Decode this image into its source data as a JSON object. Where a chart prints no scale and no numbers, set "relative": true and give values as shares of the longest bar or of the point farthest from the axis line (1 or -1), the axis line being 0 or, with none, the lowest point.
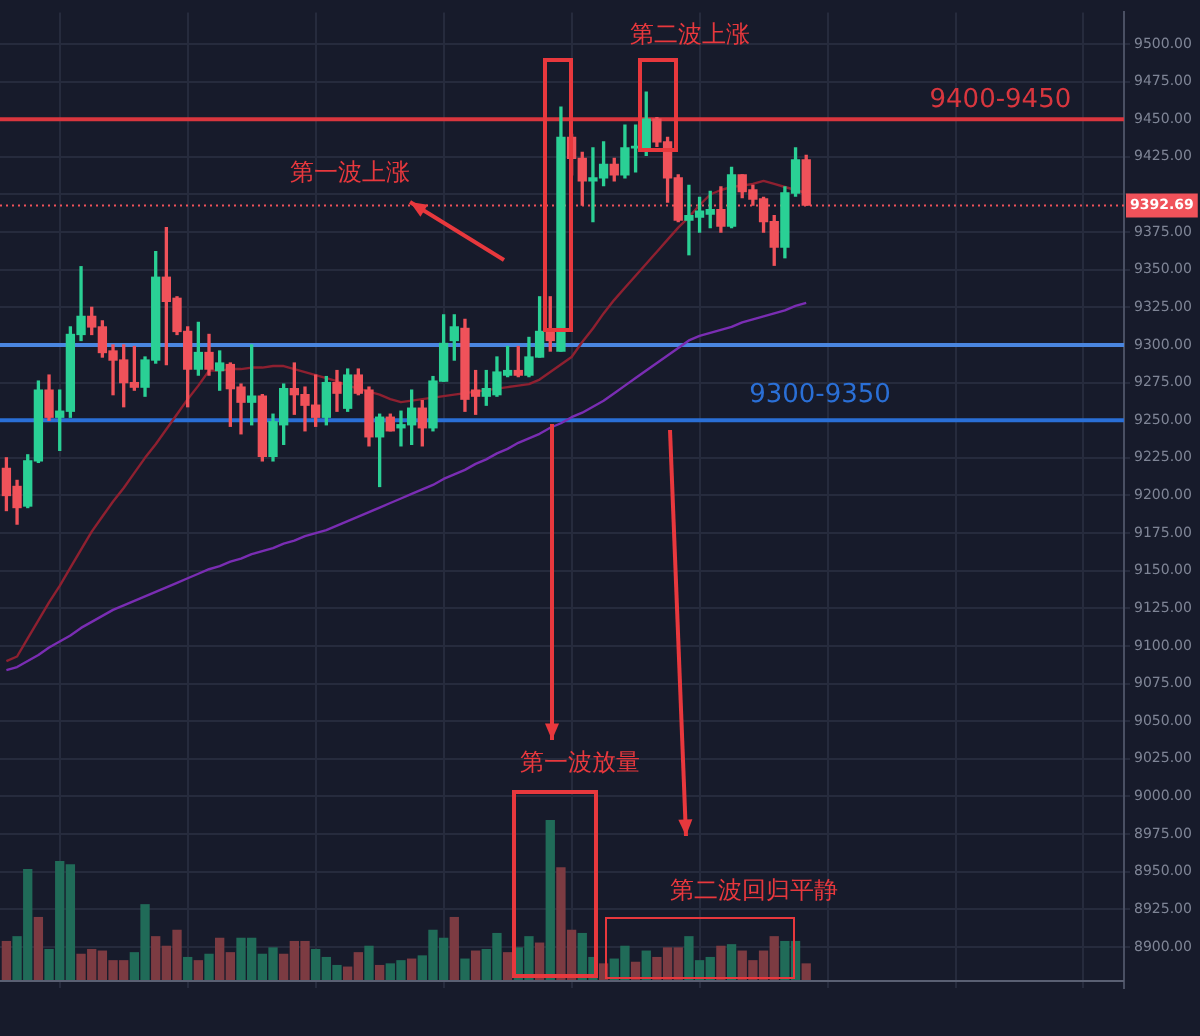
{
  "chart_data": [
    {
      "type": "candlestick",
      "categories": [
        null,
        null,
        null,
        null,
        null,
        null,
        null,
        null,
        null,
        null,
        null,
        null,
        null,
        null,
        null,
        null,
        null,
        null,
        null,
        null,
        null,
        null,
        null,
        null,
        null,
        null,
        null,
        null,
        null,
        null,
        null,
        null,
        null,
        null,
        null,
        null,
        null,
        null,
        null,
        null,
        null,
        null,
        null,
        null,
        null,
        null,
        null,
        null,
        null,
        null,
        null,
        null,
        null,
        null,
        null,
        null,
        null,
        null,
        null,
        null,
        null,
        null,
        null,
        null,
        null,
        null,
        null,
        null,
        null,
        null,
        null,
        null,
        null,
        null,
        null,
        null
      ],
      "ohlc": [
        [
          9218,
          9225,
          9190,
          9200
        ],
        [
          9206,
          9210,
          9181,
          9192
        ],
        [
          9193,
          9227,
          9192,
          9223
        ],
        [
          9223,
          9276,
          9222,
          9270
        ],
        [
          9270,
          9280,
          9250,
          9252
        ],
        [
          9252,
          9270,
          9230,
          9256
        ],
        [
          9256,
          9312,
          9252,
          9307
        ],
        [
          9307,
          9352,
          9303,
          9319
        ],
        [
          9319,
          9325,
          9307,
          9312
        ],
        [
          9312,
          9316,
          9292,
          9295
        ],
        [
          9296,
          9300,
          9267,
          9290
        ],
        [
          9290,
          9300,
          9259,
          9275
        ],
        [
          9275,
          9299,
          9270,
          9272
        ],
        [
          9272,
          9292,
          9266,
          9290
        ],
        [
          9290,
          9362,
          9288,
          9345
        ],
        [
          9345,
          9378,
          9287,
          9329
        ],
        [
          9331,
          9332,
          9307,
          9309
        ],
        [
          9309,
          9312,
          9259,
          9284
        ],
        [
          9284,
          9315,
          9280,
          9295
        ],
        [
          9295,
          9307,
          9280,
          9284
        ],
        [
          9283,
          9296,
          9270,
          9288
        ],
        [
          9287,
          9288,
          9246,
          9271
        ],
        [
          9272,
          9274,
          9241,
          9262
        ],
        [
          9262,
          9300,
          9247,
          9266
        ],
        [
          9266,
          9267,
          9223,
          9226
        ],
        [
          9226,
          9254,
          9223,
          9249
        ],
        [
          9247,
          9274,
          9234,
          9271
        ],
        [
          9271,
          9288,
          9254,
          9267
        ],
        [
          9267,
          9272,
          9243,
          9260
        ],
        [
          9260,
          9280,
          9246,
          9252
        ],
        [
          9252,
          9279,
          9247,
          9275
        ],
        [
          9275,
          9283,
          9256,
          9268
        ],
        [
          9258,
          9284,
          9256,
          9280
        ],
        [
          9280,
          9284,
          9267,
          9268
        ],
        [
          9270,
          9272,
          9233,
          9239
        ],
        [
          9239,
          9254,
          9206,
          9252
        ],
        [
          9252,
          9254,
          9243,
          9243
        ],
        [
          9245,
          9256,
          9233,
          9247
        ],
        [
          9247,
          9270,
          9234,
          9258
        ],
        [
          9258,
          9263,
          9233,
          9245
        ],
        [
          9245,
          9279,
          9243,
          9276
        ],
        [
          9276,
          9320,
          9276,
          9301
        ],
        [
          9303,
          9320,
          9290,
          9312
        ],
        [
          9311,
          9317,
          9256,
          9264
        ],
        [
          9270,
          9283,
          9254,
          9266
        ],
        [
          9266,
          9283,
          9260,
          9271
        ],
        [
          9267,
          9292,
          9266,
          9282
        ],
        [
          9280,
          9299,
          9279,
          9283
        ],
        [
          9283,
          9299,
          9279,
          9280
        ],
        [
          9280,
          9305,
          9279,
          9292
        ],
        [
          9292,
          9332,
          9292,
          9309
        ],
        [
          9309,
          9332,
          9296,
          9303
        ],
        [
          9296,
          9458,
          9296,
          9438
        ],
        [
          9438,
          9440,
          9413,
          9424
        ],
        [
          9424,
          9428,
          9393,
          9409
        ],
        [
          9409,
          9431,
          9382,
          9411
        ],
        [
          9411,
          9435,
          9406,
          9420
        ],
        [
          9420,
          9424,
          9409,
          9413
        ],
        [
          9413,
          9446,
          9411,
          9431
        ],
        [
          9431,
          9446,
          9415,
          9432
        ],
        [
          9431,
          9468,
          9426,
          9450
        ],
        [
          9450,
          9451,
          9432,
          9435
        ],
        [
          9435,
          9438,
          9395,
          9411
        ],
        [
          9411,
          9413,
          9382,
          9383
        ],
        [
          9383,
          9406,
          9360,
          9386
        ],
        [
          9385,
          9398,
          9375,
          9389
        ],
        [
          9387,
          9402,
          9378,
          9390
        ],
        [
          9390,
          9405,
          9375,
          9379
        ],
        [
          9379,
          9418,
          9378,
          9413
        ],
        [
          9413,
          9413,
          9398,
          9402
        ],
        [
          9403,
          9406,
          9393,
          9397
        ],
        [
          9397,
          9398,
          9375,
          9382
        ],
        [
          9382,
          9386,
          9353,
          9365
        ],
        [
          9365,
          9405,
          9358,
          9401
        ],
        [
          9401,
          9431,
          9399,
          9423
        ],
        [
          9423,
          9426,
          9393,
          9393
        ]
      ],
      "colors": [
        "#f0525a",
        "#f0525a",
        "#2ad095",
        "#2ad095",
        "#f0525a",
        "#2ad095",
        "#2ad095",
        "#2ad095",
        "#f0525a",
        "#f0525a",
        "#f0525a",
        "#f0525a",
        "#f0525a",
        "#2ad095",
        "#2ad095",
        "#f0525a",
        "#f0525a",
        "#f0525a",
        "#2ad095",
        "#f0525a",
        "#2ad095",
        "#f0525a",
        "#f0525a",
        "#2ad095",
        "#f0525a",
        "#2ad095",
        "#2ad095",
        "#f0525a",
        "#f0525a",
        "#f0525a",
        "#2ad095",
        "#f0525a",
        "#2ad095",
        "#f0525a",
        "#f0525a",
        "#2ad095",
        "#f0525a",
        "#2ad095",
        "#2ad095",
        "#f0525a",
        "#2ad095",
        "#2ad095",
        "#2ad095",
        "#f0525a",
        "#f0525a",
        "#2ad095",
        "#2ad095",
        "#2ad095",
        "#f0525a",
        "#2ad095",
        "#2ad095",
        "#f0525a",
        "#2ad095",
        "#f0525a",
        "#f0525a",
        "#2ad095",
        "#2ad095",
        "#f0525a",
        "#2ad095",
        "#2ad095",
        "#2ad095",
        "#f0525a",
        "#f0525a",
        "#f0525a",
        "#2ad095",
        "#2ad095",
        "#2ad095",
        "#f0525a",
        "#2ad095",
        "#f0525a",
        "#f0525a",
        "#f0525a",
        "#f0525a",
        "#2ad095",
        "#2ad095",
        "#f0525a"
      ],
      "series": [
        {
          "type": "line",
          "color": "#8e2030",
          "values": [
            9090,
            9093,
            9105,
            9117,
            9129,
            9140,
            9152,
            9164,
            9176,
            9186,
            9196,
            9205,
            9215,
            9225,
            9234,
            9244,
            9254,
            9264,
            9273,
            9283,
            9283,
            9284,
            9284,
            9285,
            9285,
            9286,
            9286,
            9284,
            9282,
            9280,
            9278,
            9276,
            9273,
            9271,
            9269,
            9267,
            9264,
            9262,
            9263,
            9264,
            9265,
            9266,
            9267,
            9268,
            9269,
            9270,
            9271,
            9272,
            9273,
            9274,
            9277,
            9282,
            9287,
            9292,
            9302,
            9311,
            9321,
            9330,
            9338,
            9346,
            9354,
            9362,
            9370,
            9378,
            9385,
            9393,
            9400,
            9403,
            9405,
            9406,
            9407,
            9409,
            9407,
            9405,
            9403,
            9401
          ]
        },
        {
          "type": "line",
          "color": "#7a2db3",
          "values": [
            9084,
            9086,
            9090,
            9094,
            9099,
            9103,
            9107,
            9112,
            9116,
            9120,
            9124,
            9127,
            9130,
            9133,
            9136,
            9139,
            9142,
            9145,
            9148,
            9151,
            9153,
            9156,
            9158,
            9161,
            9163,
            9165,
            9168,
            9170,
            9173,
            9175,
            9177,
            9180,
            9183,
            9186,
            9189,
            9192,
            9195,
            9198,
            9201,
            9204,
            9207,
            9211,
            9214,
            9217,
            9221,
            9224,
            9228,
            9231,
            9235,
            9238,
            9241,
            9245,
            9248,
            9252,
            9255,
            9259,
            9263,
            9268,
            9273,
            9278,
            9283,
            9288,
            9293,
            9298,
            9303,
            9306,
            9308,
            9310,
            9312,
            9315,
            9317,
            9319,
            9321,
            9323,
            9326,
            9328
          ]
        }
      ],
      "ylim": [
        8873,
        9521
      ],
      "yticks": [
        {
          "value": 8900,
          "label": "8900.00"
        },
        {
          "value": 8925,
          "label": "8925.00"
        },
        {
          "value": 8950,
          "label": "8950.00"
        },
        {
          "value": 8975,
          "label": "8975.00"
        },
        {
          "value": 9000,
          "label": "9000.00"
        },
        {
          "value": 9025,
          "label": "9025.00"
        },
        {
          "value": 9050,
          "label": "9050.00"
        },
        {
          "value": 9075,
          "label": "9075.00"
        },
        {
          "value": 9100,
          "label": "9100.00"
        },
        {
          "value": 9125,
          "label": "9125.00"
        },
        {
          "value": 9150,
          "label": "9150.00"
        },
        {
          "value": 9175,
          "label": "9175.00"
        },
        {
          "value": 9200,
          "label": "9200.00"
        },
        {
          "value": 9225,
          "label": "9225.00"
        },
        {
          "value": 9250,
          "label": "9250.00"
        },
        {
          "value": 9275,
          "label": "9275.00"
        },
        {
          "value": 9300,
          "label": "9300.00"
        },
        {
          "value": 9325,
          "label": "9325.00"
        },
        {
          "value": 9350,
          "label": "9350.00"
        },
        {
          "value": 9375,
          "label": "9375.00"
        },
        {
          "value": 9400,
          "label": null
        },
        {
          "value": 9425,
          "label": "9425.00"
        },
        {
          "value": 9450,
          "label": "9450.00"
        },
        {
          "value": 9475,
          "label": "9475.00"
        },
        {
          "value": 9500,
          "label": "9500.00"
        }
      ],
      "ref_lines": [
        {
          "axis": "y",
          "value": 9450,
          "color": "#d9363e"
        },
        {
          "axis": "y",
          "value": 9392.69,
          "label": "9392.69",
          "color": "#f0525a",
          "line_style": "dotted"
        },
        {
          "axis": "y",
          "value": 9300,
          "color": "#4a86e0"
        },
        {
          "axis": "y",
          "value": 9250,
          "color": "#2a6fd6"
        }
      ],
      "annotations": [
        "第一波上涨",
        "第二波上涨",
        {
          "text": "9400-9450",
          "y": 9450
        },
        "9300-9350"
      ],
      "grid": true,
      "tick_labels": "y"
    },
    {
      "type": "bar",
      "categories": [
        null,
        null,
        null,
        null,
        null,
        null,
        null,
        null,
        null,
        null,
        null,
        null,
        null,
        null,
        null,
        null,
        null,
        null,
        null,
        null,
        null,
        null,
        null,
        null,
        null,
        null,
        null,
        null,
        null,
        null,
        null,
        null,
        null,
        null,
        null,
        null,
        null,
        null,
        null,
        null,
        null,
        null,
        null,
        null,
        null,
        null,
        null,
        null,
        null,
        null,
        null,
        null,
        null,
        null,
        null,
        null,
        null,
        null,
        null,
        null,
        null,
        null,
        null,
        null,
        null,
        null,
        null,
        null,
        null,
        null,
        null,
        null,
        null,
        null,
        null,
        null
      ],
      "values": [
        0.24,
        0.27,
        0.69,
        0.39,
        0.19,
        0.74,
        0.72,
        0.16,
        0.19,
        0.18,
        0.12,
        0.12,
        0.17,
        0.47,
        0.27,
        0.21,
        0.31,
        0.14,
        0.12,
        0.16,
        0.26,
        0.17,
        0.26,
        0.26,
        0.16,
        0.2,
        0.16,
        0.24,
        0.24,
        0.19,
        0.14,
        0.09,
        0.08,
        0.17,
        0.21,
        0.09,
        0.1,
        0.12,
        0.13,
        0.15,
        0.31,
        0.26,
        0.39,
        0.13,
        0.18,
        0.19,
        0.29,
        0.17,
        0.2,
        0.27,
        0.23,
        1,
        0.7,
        0.31,
        0.29,
        0.14,
        0.1,
        0.13,
        0.21,
        0.11,
        0.18,
        0.14,
        0.2,
        0.2,
        0.27,
        0.12,
        0.14,
        0.21,
        0.22,
        0.18,
        0.12,
        0.18,
        0.27,
        0.24,
        0.24,
        0.1
      ],
      "colors": [
        "#7c3b42",
        "#206b58",
        "#206b58",
        "#7c3b42",
        "#206b58",
        "#206b58",
        "#206b58",
        "#7c3b42",
        "#7c3b42",
        "#7c3b42",
        "#7c3b42",
        "#7c3b42",
        "#206b58",
        "#206b58",
        "#7c3b42",
        "#7c3b42",
        "#7c3b42",
        "#206b58",
        "#7c3b42",
        "#206b58",
        "#7c3b42",
        "#7c3b42",
        "#206b58",
        "#206b58",
        "#206b58",
        "#206b58",
        "#7c3b42",
        "#7c3b42",
        "#7c3b42",
        "#206b58",
        "#206b58",
        "#206b58",
        "#7c3b42",
        "#7c3b42",
        "#206b58",
        "#7c3b42",
        "#206b58",
        "#206b58",
        "#7c3b42",
        "#206b58",
        "#206b58",
        "#206b58",
        "#7c3b42",
        "#206b58",
        "#7c3b42",
        "#206b58",
        "#206b58",
        "#7c3b42",
        "#206b58",
        "#206b58",
        "#7c3b42",
        "#206b58",
        "#7c3b42",
        "#7c3b42",
        "#206b58",
        "#206b58",
        "#7c3b42",
        "#206b58",
        "#206b58",
        "#7c3b42",
        "#206b58",
        "#7c3b42",
        "#7c3b42",
        "#7c3b42",
        "#206b58",
        "#206b58",
        "#206b58",
        "#7c3b42",
        "#206b58",
        "#7c3b42",
        "#7c3b42",
        "#7c3b42",
        "#7c3b42",
        "#206b58",
        "#206b58",
        "#7c3b42"
      ],
      "relative": true,
      "annotations": [
        "第一波放量",
        "第二波回归平静"
      ],
      "tick_labels": false
    }
  ]
}
